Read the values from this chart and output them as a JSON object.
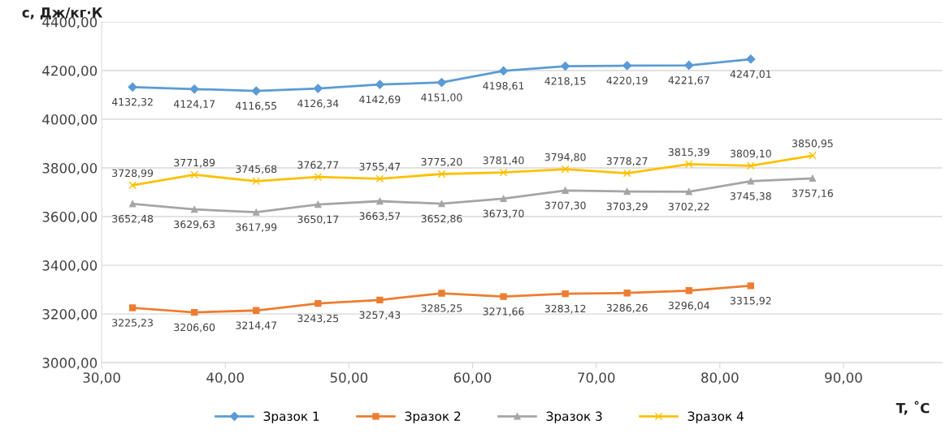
{
  "chart_data": {
    "type": "line",
    "xlabel": "T, ˚C",
    "ylabel": "c, Дж/кг·К",
    "xlim": [
      30,
      98
    ],
    "xticks": [
      {
        "value": 30,
        "label": "30,00"
      },
      {
        "value": 40,
        "label": "40,00"
      },
      {
        "value": 50,
        "label": "50,00"
      },
      {
        "value": 60,
        "label": "60,00"
      },
      {
        "value": 70,
        "label": "70,00"
      },
      {
        "value": 80,
        "label": "80,00"
      },
      {
        "value": 90,
        "label": "90,00"
      }
    ],
    "ylim": [
      3000,
      4400
    ],
    "yticks": [
      {
        "value": 3000,
        "label": "3000,00"
      },
      {
        "value": 3200,
        "label": "3200,00"
      },
      {
        "value": 3400,
        "label": "3400,00"
      },
      {
        "value": 3600,
        "label": "3600,00"
      },
      {
        "value": 3800,
        "label": "3800,00"
      },
      {
        "value": 4000,
        "label": "4000,00"
      },
      {
        "value": 4200,
        "label": "4200,00"
      },
      {
        "value": 4400,
        "label": "4400,00"
      }
    ],
    "grid": "y",
    "legend": "bottom",
    "data_labels": true,
    "series": [
      {
        "name": "Зразок 1",
        "color": "#5b9bd5",
        "marker": "diamond",
        "x": [
          32.5,
          37.5,
          42.5,
          47.5,
          52.5,
          57.5,
          62.5,
          67.5,
          72.5,
          77.5,
          82.5
        ],
        "values": [
          4132.32,
          4124.17,
          4116.55,
          4126.34,
          4142.69,
          4151.0,
          4198.61,
          4218.15,
          4220.19,
          4221.67,
          4247.01
        ],
        "value_labels": [
          "4132,32",
          "4124,17",
          "4116,55",
          "4126,34",
          "4142,69",
          "4151,00",
          "4198,61",
          "4218,15",
          "4220,19",
          "4221,67",
          "4247,01"
        ]
      },
      {
        "name": "Зразок 2",
        "color": "#ed7d31",
        "marker": "square",
        "x": [
          32.5,
          37.5,
          42.5,
          47.5,
          52.5,
          57.5,
          62.5,
          67.5,
          72.5,
          77.5,
          82.5
        ],
        "values": [
          3225.23,
          3206.6,
          3214.47,
          3243.25,
          3257.43,
          3285.25,
          3271.66,
          3283.12,
          3286.26,
          3296.04,
          3315.92
        ],
        "value_labels": [
          "3225,23",
          "3206,60",
          "3214,47",
          "3243,25",
          "3257,43",
          "3285,25",
          "3271,66",
          "3283,12",
          "3286,26",
          "3296,04",
          "3315,92"
        ]
      },
      {
        "name": "Зразок 3",
        "color": "#a5a5a5",
        "marker": "triangle",
        "x": [
          32.5,
          37.5,
          42.5,
          47.5,
          52.5,
          57.5,
          62.5,
          67.5,
          72.5,
          77.5,
          82.5,
          87.5
        ],
        "values": [
          3652.48,
          3629.63,
          3617.99,
          3650.17,
          3663.57,
          3652.86,
          3673.7,
          3707.3,
          3703.29,
          3702.22,
          3745.38,
          3757.16
        ],
        "value_labels": [
          "3652,48",
          "3629,63",
          "3617,99",
          "3650,17",
          "3663,57",
          "3652,86",
          "3673,70",
          "3707,30",
          "3703,29",
          "3702,22",
          "3745,38",
          "3757,16"
        ]
      },
      {
        "name": "Зразок 4",
        "color": "#ffc000",
        "marker": "cross",
        "x": [
          32.5,
          37.5,
          42.5,
          47.5,
          52.5,
          57.5,
          62.5,
          67.5,
          72.5,
          77.5,
          82.5,
          87.5
        ],
        "values": [
          3728.99,
          3771.89,
          3745.68,
          3762.77,
          3755.47,
          3775.2,
          3781.4,
          3794.8,
          3778.27,
          3815.39,
          3809.1,
          3850.95
        ],
        "value_labels": [
          "3728,99",
          "3771,89",
          "3745,68",
          "3762,77",
          "3755,47",
          "3775,20",
          "3781,40",
          "3794,80",
          "3778,27",
          "3815,39",
          "3809,10",
          "3850,95"
        ]
      }
    ]
  }
}
